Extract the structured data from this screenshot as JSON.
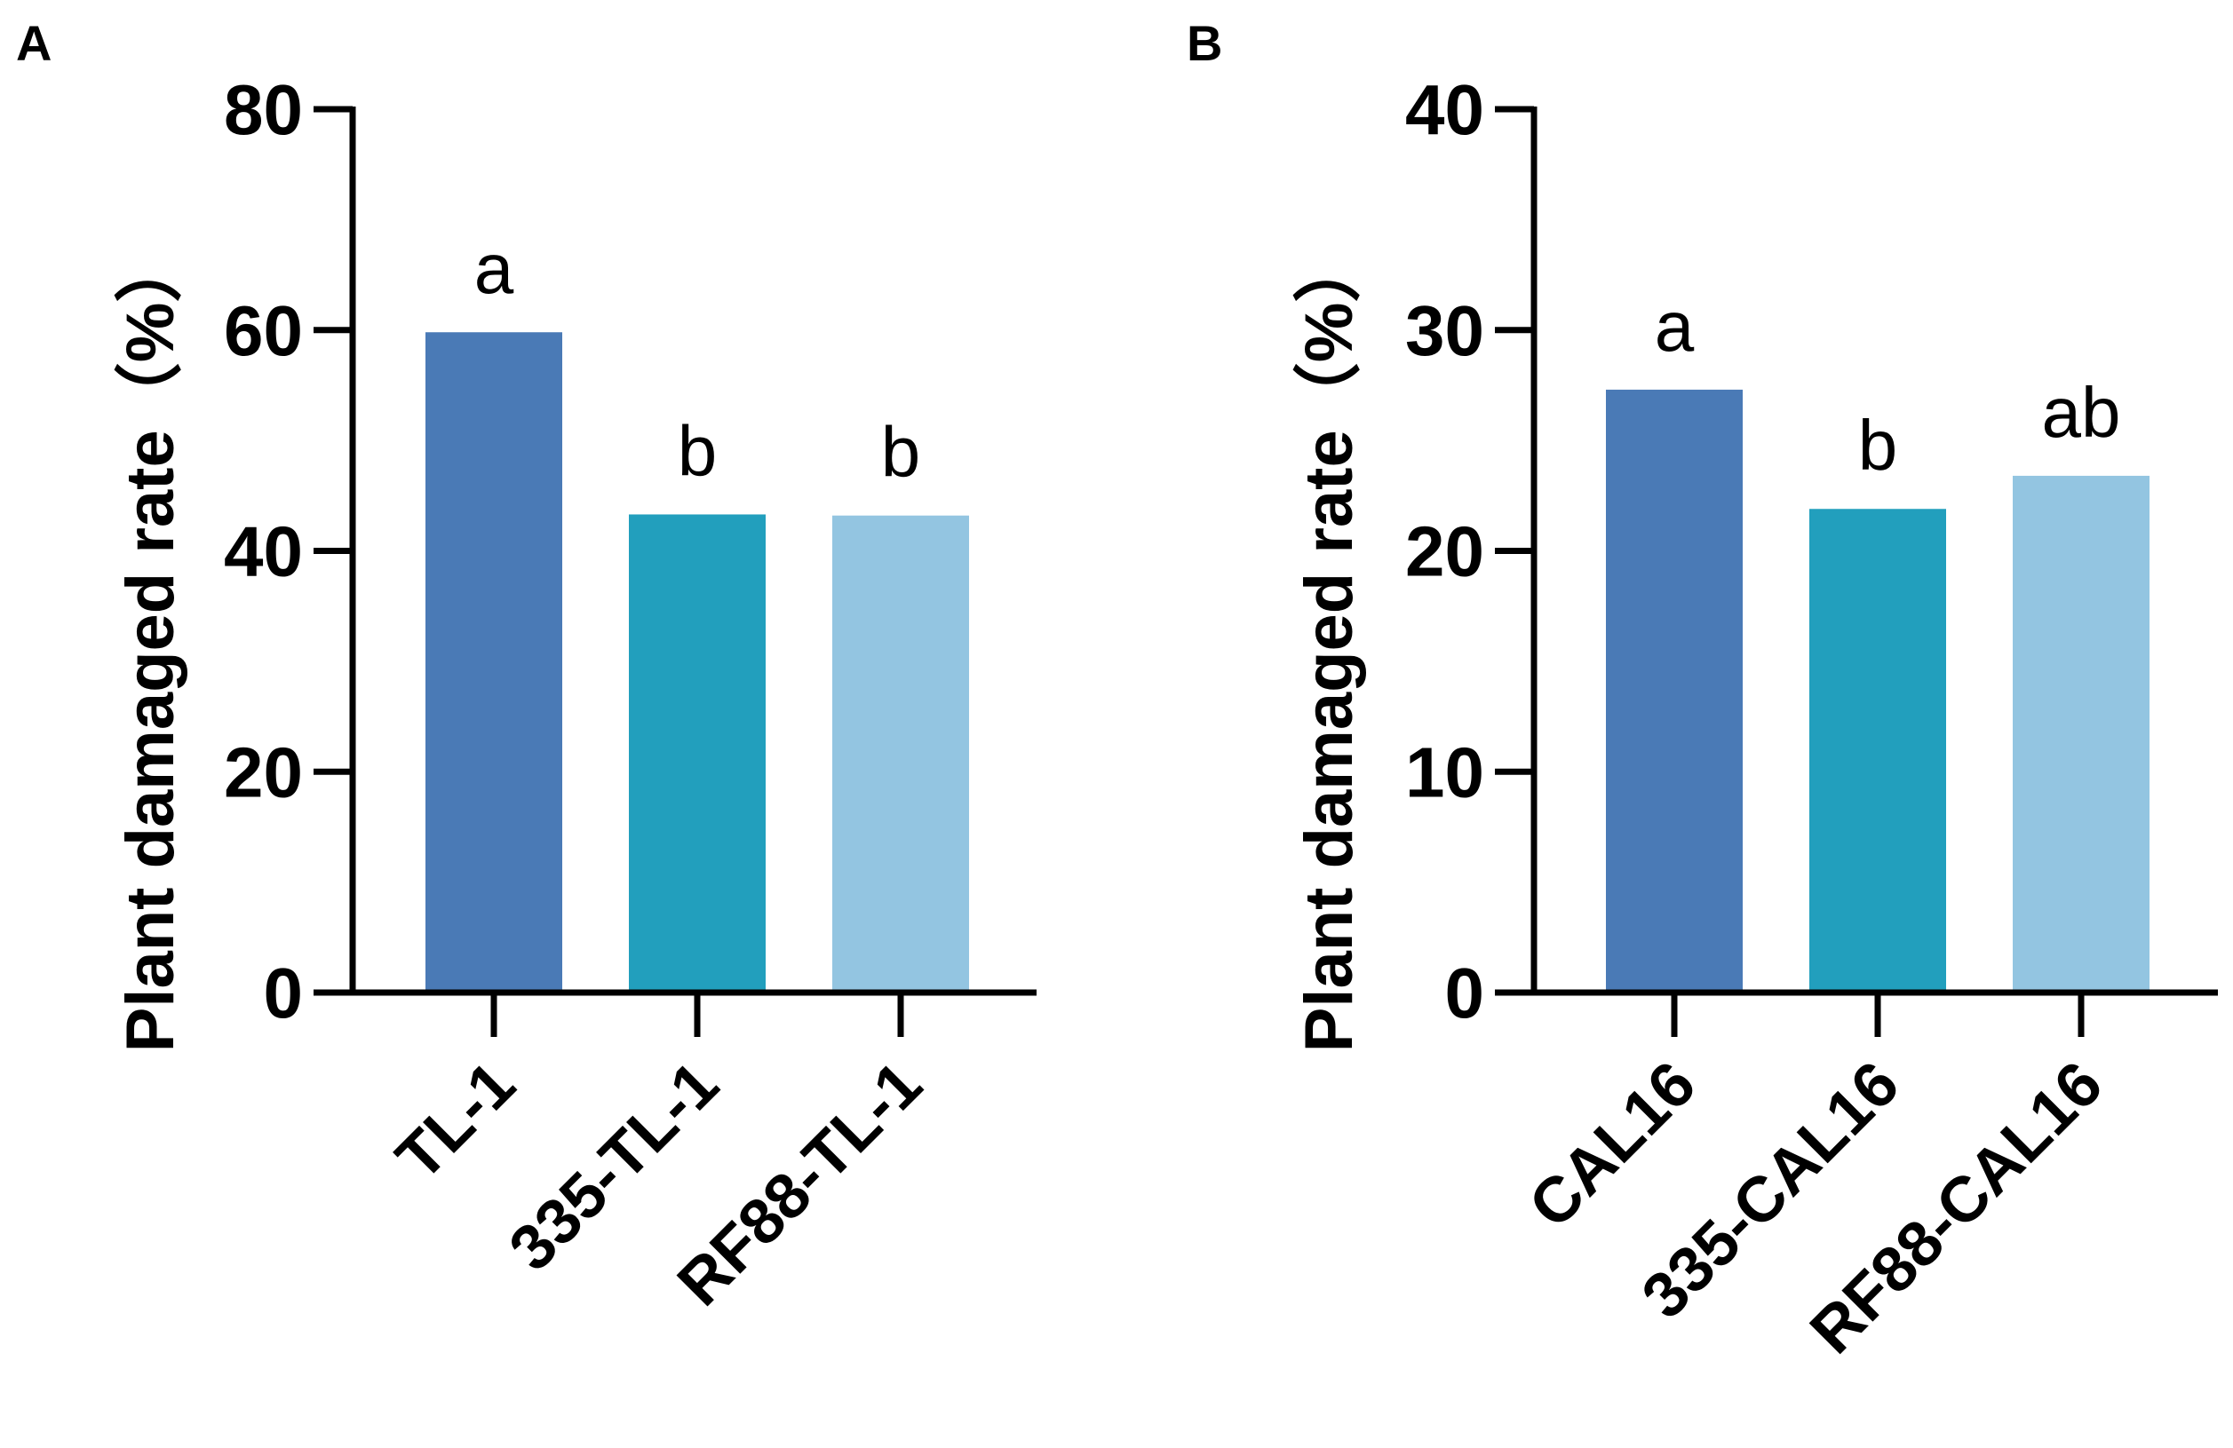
{
  "chart_data": [
    {
      "panel": "A",
      "type": "bar",
      "ylabel": "Plant damaged rate（%）",
      "ylim": [
        0,
        80
      ],
      "yticks": [
        "0",
        "20",
        "40",
        "60",
        "80"
      ],
      "categories": [
        "TL-1",
        "335-TL-1",
        "RF88-TL-1"
      ],
      "values": [
        59.8,
        43.3,
        43.2
      ],
      "significance": [
        "a",
        "b",
        "b"
      ],
      "colors": [
        "#4a7ab6",
        "#229fbd",
        "#93c5e1"
      ]
    },
    {
      "panel": "B",
      "type": "bar",
      "ylabel": "Plant damaged rate（%）",
      "ylim": [
        0,
        40
      ],
      "yticks": [
        "0",
        "10",
        "20",
        "30",
        "40"
      ],
      "categories": [
        "CAL16",
        "335-CAL16",
        "RF88-CAL16"
      ],
      "values": [
        27.3,
        21.9,
        23.4
      ],
      "significance": [
        "a",
        "b",
        "ab"
      ],
      "colors": [
        "#4a7ab6",
        "#229fbd",
        "#93c5e1"
      ]
    }
  ]
}
